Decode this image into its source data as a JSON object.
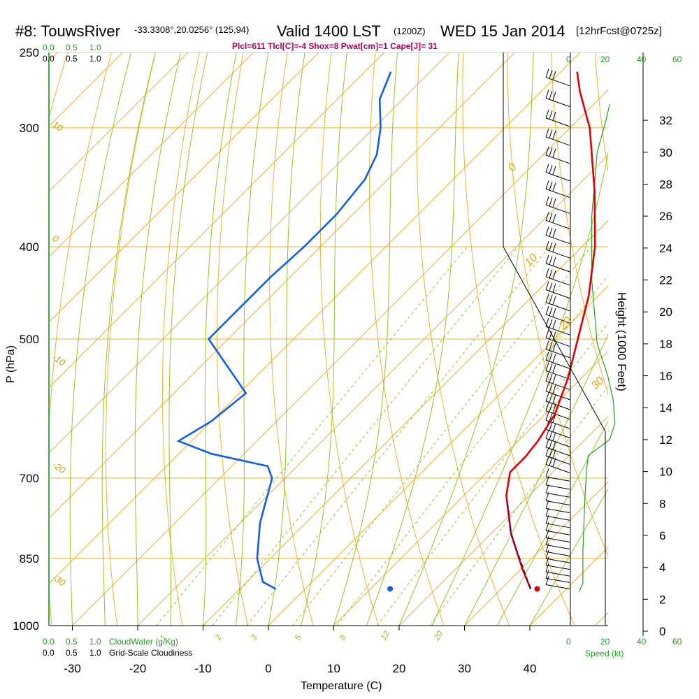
{
  "header": {
    "title_main": "#8: TouwsRiver",
    "title_coords": "-33.3308°,20.0256° (125,94)",
    "valid_label": "Valid 1400 LST",
    "valid_z": "(1200Z)",
    "date": "WED 15 Jan 2014",
    "forecast": "[12hrFcst@0725z]",
    "indices": "Plcl=611 Tlcl[C]=-4 Shox=8 Pwat[cm]=1 Cape[J]= 31"
  },
  "chart_data": {
    "type": "line",
    "variant": "skew-T log-P sounding",
    "xlabel": "Temperature (C)",
    "ylabel": "P (hPa)",
    "y2label": "Height (1000 Feet)",
    "xlim": [
      -35,
      45
    ],
    "ylim_hpa": [
      1000,
      250
    ],
    "y_scale": "log",
    "x_ticks": [
      -30,
      -20,
      -10,
      0,
      10,
      20,
      30,
      40
    ],
    "p_ticks": [
      1000,
      850,
      700,
      500,
      400,
      300,
      250
    ],
    "height_ticks": [
      0,
      2,
      4,
      6,
      8,
      10,
      12,
      14,
      16,
      18,
      20,
      22,
      24,
      26,
      28,
      30,
      32
    ],
    "isotherm_labels": [
      "-10",
      "0",
      "10",
      "20",
      "30"
    ],
    "adiabat_labels": [
      "10",
      "0",
      "-10",
      "-20",
      "-30"
    ],
    "mixing_ratio_labels": [
      "1",
      "2",
      "3",
      "5",
      "8",
      "12",
      "20"
    ],
    "cloud_scales": {
      "cloudwater_ticks": [
        "0.0",
        "0.5",
        "1.0"
      ],
      "cloudwater_label": "CloudWater (g/Kg)",
      "cloudiness_ticks": [
        "0.0",
        "0.5",
        "1.0"
      ],
      "cloudiness_label": "Grid-Scale Cloudiness"
    },
    "speed": {
      "ticks": [
        "0",
        "20",
        "40",
        "60"
      ],
      "label": "Speed (kt)"
    },
    "series": [
      {
        "name": "Temperature",
        "color": "#e00000",
        "points": [
          {
            "p": 915,
            "t": 34.5
          },
          {
            "p": 870,
            "t": 30.0
          },
          {
            "p": 800,
            "t": 23.0
          },
          {
            "p": 730,
            "t": 16.5
          },
          {
            "p": 690,
            "t": 13.5
          },
          {
            "p": 665,
            "t": 13.5
          },
          {
            "p": 640,
            "t": 13.0
          },
          {
            "p": 600,
            "t": 11.5
          },
          {
            "p": 550,
            "t": 8.0
          },
          {
            "p": 500,
            "t": 3.5
          },
          {
            "p": 450,
            "t": -1.5
          },
          {
            "p": 400,
            "t": -8.0
          },
          {
            "p": 350,
            "t": -16.5
          },
          {
            "p": 300,
            "t": -27.0
          },
          {
            "p": 275,
            "t": -34.0
          },
          {
            "p": 262,
            "t": -37.5
          }
        ]
      },
      {
        "name": "Dewpoint",
        "color": "#1060e0",
        "points": [
          {
            "p": 915,
            "t": -4.5
          },
          {
            "p": 900,
            "t": -7.5
          },
          {
            "p": 850,
            "t": -12.0
          },
          {
            "p": 780,
            "t": -17.0
          },
          {
            "p": 700,
            "t": -22.0
          },
          {
            "p": 680,
            "t": -24.5
          },
          {
            "p": 660,
            "t": -35.0
          },
          {
            "p": 640,
            "t": -42.0
          },
          {
            "p": 610,
            "t": -40.0
          },
          {
            "p": 570,
            "t": -39.0
          },
          {
            "p": 500,
            "t": -53.0
          },
          {
            "p": 470,
            "t": -53.0
          },
          {
            "p": 430,
            "t": -53.0
          },
          {
            "p": 400,
            "t": -52.5
          },
          {
            "p": 370,
            "t": -52.5
          },
          {
            "p": 340,
            "t": -53.5
          },
          {
            "p": 320,
            "t": -55.5
          },
          {
            "p": 300,
            "t": -59.0
          },
          {
            "p": 280,
            "t": -63.5
          },
          {
            "p": 262,
            "t": -66.0
          }
        ]
      },
      {
        "name": "Parcel",
        "color": "#000080",
        "points": [
          {
            "p": 915,
            "t": 34.5
          },
          {
            "p": 800,
            "t": 23.0
          },
          {
            "p": 740,
            "t": 17.5
          }
        ]
      }
    ],
    "surface_markers": [
      {
        "name": "surface-temperature",
        "p": 915,
        "t": 35.5,
        "color": "#e00000"
      },
      {
        "name": "surface-dewpoint",
        "p": 915,
        "t": 13.0,
        "color": "#1060e0"
      }
    ],
    "wind_speed_profile_kt": [
      {
        "height_kft": 2.5,
        "speed": 5
      },
      {
        "height_kft": 3,
        "speed": 7
      },
      {
        "height_kft": 5,
        "speed": 7
      },
      {
        "height_kft": 8,
        "speed": 8
      },
      {
        "height_kft": 10,
        "speed": 9
      },
      {
        "height_kft": 11,
        "speed": 10
      },
      {
        "height_kft": 12,
        "speed": 22
      },
      {
        "height_kft": 13,
        "speed": 25
      },
      {
        "height_kft": 14.5,
        "speed": 24
      },
      {
        "height_kft": 16,
        "speed": 21
      },
      {
        "height_kft": 18,
        "speed": 15
      },
      {
        "height_kft": 22,
        "speed": 12
      },
      {
        "height_kft": 26,
        "speed": 12
      },
      {
        "height_kft": 30,
        "speed": 15
      },
      {
        "height_kft": 32,
        "speed": 20
      },
      {
        "height_kft": 33,
        "speed": 22
      }
    ],
    "grid": true
  }
}
